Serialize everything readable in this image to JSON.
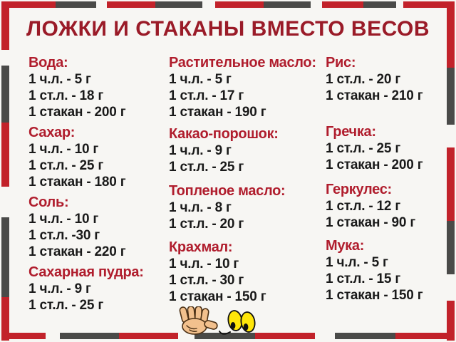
{
  "title": "ЛОЖКИ И СТАКАНЫ ВМЕСТО ВЕСОВ",
  "colors": {
    "border_red": "#c2222a",
    "border_gray": "#4a4a48",
    "title_red": "#9a1b28",
    "heading_red": "#b01d2d",
    "text_dark": "#1a1a1a",
    "background": "#f7f6f3",
    "cartoon_yellow": "#ffe60a",
    "cartoon_skin": "#f2c08d"
  },
  "decor": {
    "cartoon": "waving-hand-and-googly-eyes"
  },
  "columns": [
    {
      "sections": [
        {
          "name": "Вода:",
          "items": [
            "1 ч.л. - 5 г",
            "1 ст.л. - 18 г",
            "1 стакан - 200 г"
          ]
        },
        {
          "name": "Сахар:",
          "items": [
            "1 ч.л. - 10 г",
            "1 ст.л. - 25 г",
            "1 стакан - 180 г"
          ]
        },
        {
          "name": "Соль:",
          "items": [
            "1 ч.л. - 10 г",
            "1 ст.л. -30 г",
            "1 стакан - 220 г"
          ]
        },
        {
          "name": "Сахарная пудра:",
          "items": [
            "1 ч.л. - 9 г",
            "1 ст.л. - 25 г"
          ]
        }
      ]
    },
    {
      "sections": [
        {
          "name": "Растительное масло:",
          "items": [
            "1 ч.л. - 5 г",
            "1 ст.л. - 17 г",
            "1 стакан - 190 г"
          ]
        },
        {
          "name": "Какао-порошок:",
          "items": [
            "1 ч.л. - 9 г",
            "1 ст.л. - 25 г"
          ]
        },
        {
          "name": "Топленое масло:",
          "items": [
            "1 ч.л. - 8 г",
            "1 ст.л. - 20 г"
          ]
        },
        {
          "name": "Крахмал:",
          "items": [
            "1 ч.л. - 10 г",
            "1 ст.л. - 30 г",
            "1 стакан - 150 г"
          ]
        }
      ]
    },
    {
      "sections": [
        {
          "name": "Рис:",
          "items": [
            "1 ст.л. - 20 г",
            "1 стакан - 210 г"
          ]
        },
        {
          "name": "Гречка:",
          "items": [
            "1 ст.л. - 25 г",
            "1 стакан - 200 г"
          ]
        },
        {
          "name": "Геркулес:",
          "items": [
            "1 ст.л. - 12 г",
            "1 стакан - 90 г"
          ]
        },
        {
          "name": "Мука:",
          "items": [
            "1 ч.л. - 5 г",
            "1 ст.л. - 15 г",
            "1 стакан - 150 г"
          ]
        }
      ]
    }
  ]
}
